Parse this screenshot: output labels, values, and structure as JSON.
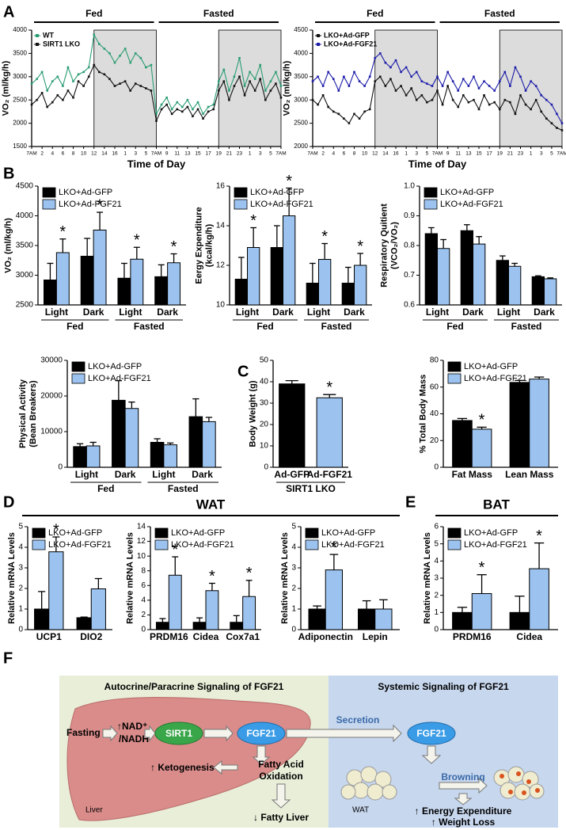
{
  "panel_labels": [
    "A",
    "B",
    "C",
    "D",
    "E",
    "F"
  ],
  "sections": [
    "WAT",
    "BAT"
  ],
  "chart_data": [
    {
      "type": "line",
      "header": [
        "Fed",
        "Fasted"
      ],
      "shaded": [
        [
          12,
          24
        ],
        [
          36,
          48
        ]
      ],
      "ylabel": "VO₂ (ml/kg/h)",
      "xlabel": "Time of Day",
      "xlim": [
        0,
        48
      ],
      "ylim": [
        1500,
        4000
      ],
      "yticks": [
        1500,
        2000,
        2500,
        3000,
        3500,
        4000
      ],
      "xticks": [
        {
          "value": 0,
          "label": "7AM"
        },
        2,
        4,
        6,
        8,
        10,
        12,
        14,
        16,
        {
          "value": 18,
          "label": "1"
        },
        {
          "value": 20,
          "label": "3"
        },
        {
          "value": 22,
          "label": "5"
        },
        {
          "value": 24,
          "label": "7AM"
        },
        {
          "value": 26,
          "label": "9"
        },
        {
          "value": 28,
          "label": "11"
        },
        {
          "value": 30,
          "label": "13"
        },
        {
          "value": 32,
          "label": "15"
        },
        {
          "value": 34,
          "label": "17"
        },
        {
          "value": 36,
          "label": "19"
        },
        {
          "value": 38,
          "label": "21"
        },
        {
          "value": 40,
          "label": "23"
        },
        {
          "value": 42,
          "label": "1"
        },
        {
          "value": 44,
          "label": "3"
        },
        {
          "value": 46,
          "label": "5"
        },
        {
          "value": 48,
          "label": "7AM"
        }
      ],
      "x": [
        0,
        1,
        2,
        3,
        4,
        5,
        6,
        7,
        8,
        9,
        10,
        11,
        12,
        13,
        14,
        15,
        16,
        17,
        18,
        19,
        20,
        21,
        22,
        23,
        24,
        25,
        26,
        27,
        28,
        29,
        30,
        31,
        32,
        33,
        34,
        35,
        36,
        37,
        38,
        39,
        40,
        41,
        42,
        43,
        44,
        45,
        46,
        47,
        48
      ],
      "series": [
        {
          "name": "WT",
          "color": "#2a9d73",
          "values": [
            2850,
            2950,
            3100,
            2700,
            2900,
            3000,
            2800,
            3200,
            2900,
            3050,
            3100,
            3200,
            3900,
            3700,
            3600,
            3500,
            3300,
            3450,
            3600,
            3300,
            3500,
            3400,
            3200,
            3250,
            2200,
            2400,
            2550,
            2300,
            2450,
            2350,
            2500,
            2300,
            2450,
            2200,
            2350,
            2400,
            2900,
            3150,
            2700,
            3000,
            3400,
            2800,
            3100,
            2950,
            3250,
            2700,
            2900,
            3100,
            2800
          ]
        },
        {
          "name": "SIRT1 LKO",
          "color": "#111111",
          "values": [
            2400,
            2500,
            2650,
            2350,
            2450,
            2600,
            2500,
            2700,
            2550,
            2900,
            2800,
            3000,
            3250,
            3100,
            3050,
            2950,
            2800,
            2850,
            2900,
            2700,
            2850,
            2800,
            2750,
            2700,
            2050,
            2300,
            2400,
            2200,
            2300,
            2250,
            2350,
            2150,
            2300,
            2100,
            2250,
            2300,
            2700,
            2900,
            2500,
            2800,
            3000,
            2600,
            2900,
            2700,
            2950,
            2500,
            2700,
            2850,
            2550
          ]
        }
      ]
    },
    {
      "type": "line",
      "header": [
        "Fed",
        "Fasted"
      ],
      "shaded": [
        [
          12,
          24
        ],
        [
          36,
          48
        ]
      ],
      "ylabel": "VO₂ (ml/kg/h)",
      "xlabel": "Time of Day",
      "xlim": [
        0,
        48
      ],
      "ylim": [
        2000,
        4500
      ],
      "yticks": [
        2000,
        2500,
        3000,
        3500,
        4000,
        4500
      ],
      "xticks": [
        {
          "value": 0,
          "label": "7AM"
        },
        2,
        4,
        6,
        8,
        10,
        12,
        14,
        16,
        {
          "value": 18,
          "label": "1"
        },
        {
          "value": 20,
          "label": "3"
        },
        {
          "value": 22,
          "label": "5"
        },
        {
          "value": 24,
          "label": "7AM"
        },
        {
          "value": 26,
          "label": "9"
        },
        {
          "value": 28,
          "label": "11"
        },
        {
          "value": 30,
          "label": "13"
        },
        {
          "value": 32,
          "label": "15"
        },
        {
          "value": 34,
          "label": "17"
        },
        {
          "value": 36,
          "label": "19"
        },
        {
          "value": 38,
          "label": "21"
        },
        {
          "value": 40,
          "label": "23"
        },
        {
          "value": 42,
          "label": "1"
        },
        {
          "value": 44,
          "label": "3"
        },
        {
          "value": 46,
          "label": "5"
        },
        {
          "value": 48,
          "label": "7AM"
        }
      ],
      "x": [
        0,
        1,
        2,
        3,
        4,
        5,
        6,
        7,
        8,
        9,
        10,
        11,
        12,
        13,
        14,
        15,
        16,
        17,
        18,
        19,
        20,
        21,
        22,
        23,
        24,
        25,
        26,
        27,
        28,
        29,
        30,
        31,
        32,
        33,
        34,
        35,
        36,
        37,
        38,
        39,
        40,
        41,
        42,
        43,
        44,
        45,
        46,
        47,
        48
      ],
      "series": [
        {
          "name": "LKO+Ad-GFP",
          "color": "#111111",
          "values": [
            3000,
            2900,
            3100,
            2850,
            2750,
            2700,
            2600,
            2500,
            2700,
            2600,
            2750,
            2800,
            3400,
            3500,
            3300,
            3450,
            3200,
            3300,
            3100,
            3250,
            3000,
            3100,
            2950,
            3000,
            3200,
            2900,
            3300,
            3000,
            2850,
            3100,
            2950,
            3000,
            2800,
            3100,
            2900,
            2950,
            2800,
            3000,
            2950,
            2700,
            3100,
            2900,
            2800,
            3000,
            2750,
            2600,
            2500,
            2400,
            2350
          ]
        },
        {
          "name": "LKO+Ad-FGF21",
          "color": "#1c1caa",
          "values": [
            3400,
            3500,
            3300,
            3600,
            3450,
            3200,
            3500,
            3300,
            3600,
            3400,
            3300,
            3500,
            3900,
            4000,
            3800,
            3700,
            3850,
            3600,
            3700,
            3500,
            3600,
            3400,
            3350,
            3300,
            3500,
            3300,
            3600,
            3400,
            3200,
            3450,
            3300,
            3500,
            3250,
            3400,
            3300,
            3200,
            3400,
            3600,
            3300,
            3700,
            3500,
            3200,
            3400,
            3300,
            3100,
            3000,
            2900,
            2700,
            2500
          ]
        }
      ]
    },
    {
      "type": "bar",
      "ylabel": [
        "VO₂ (ml/kg/h)"
      ],
      "categories": [
        "Light",
        "Dark",
        "Light",
        "Dark"
      ],
      "groups": [
        "Fed",
        "Fasted"
      ],
      "ylim": [
        2500,
        4500
      ],
      "yticks": [
        2500,
        3000,
        3500,
        4000,
        4500
      ],
      "series": [
        {
          "name": "LKO+Ad-GFP",
          "color": "#000000",
          "values": [
            2920,
            3320,
            2950,
            2975
          ],
          "errors": [
            280,
            300,
            250,
            200
          ]
        },
        {
          "name": "LKO+Ad-FGF21",
          "color": "#9cc3f0",
          "values": [
            3380,
            3760,
            3270,
            3210
          ],
          "errors": [
            230,
            300,
            200,
            150
          ],
          "significance": [
            "*",
            "*",
            "*",
            "*"
          ]
        }
      ]
    },
    {
      "type": "bar",
      "ylabel": [
        "Eergy Expenditure",
        "(kcal/kg/h)"
      ],
      "categories": [
        "Light",
        "Dark",
        "Light",
        "Dark"
      ],
      "groups": [
        "Fed",
        "Fasted"
      ],
      "ylim": [
        10,
        16
      ],
      "yticks": [
        10,
        12,
        14,
        16
      ],
      "series": [
        {
          "name": "LKO+Ad-GFP",
          "color": "#000000",
          "values": [
            11.3,
            12.9,
            11.1,
            11.1
          ],
          "errors": [
            1.1,
            1.1,
            1.0,
            0.8
          ]
        },
        {
          "name": "LKO+Ad-FGF21",
          "color": "#9cc3f0",
          "values": [
            12.9,
            14.5,
            12.3,
            12.0
          ],
          "errors": [
            1.0,
            1.4,
            0.8,
            0.6
          ],
          "significance": [
            "*",
            "*",
            "*",
            "*"
          ]
        }
      ]
    },
    {
      "type": "bar",
      "ylabel": [
        "Respiratory Quitient",
        "(VCO₂/VO₂)"
      ],
      "categories": [
        "Light",
        "Dark",
        "Light",
        "Dark"
      ],
      "groups": [
        "Fed",
        "Fasted"
      ],
      "ylim": [
        0.6,
        1.0
      ],
      "yticks": [
        0.6,
        0.7,
        0.8,
        0.9,
        {
          "value": 1.0,
          "label": "1.0"
        }
      ],
      "series": [
        {
          "name": "LKO+Ad-GFP",
          "color": "#000000",
          "values": [
            0.84,
            0.85,
            0.75,
            0.695
          ],
          "errors": [
            0.02,
            0.02,
            0.015,
            0.003
          ]
        },
        {
          "name": "LKO+Ad-FGF21",
          "color": "#9cc3f0",
          "values": [
            0.79,
            0.805,
            0.73,
            0.688
          ],
          "errors": [
            0.03,
            0.025,
            0.01,
            0.003
          ]
        }
      ]
    },
    {
      "type": "bar",
      "ylabel": [
        "Physical Activity",
        "(Bean Breakers)"
      ],
      "categories": [
        "Light",
        "Dark",
        "Light",
        "Dark"
      ],
      "groups": [
        "Fed",
        "Fasted"
      ],
      "ylim": [
        0,
        30000
      ],
      "yticks": [
        0,
        10000,
        20000,
        30000
      ],
      "series": [
        {
          "name": "LKO+Ad-GFP",
          "color": "#000000",
          "values": [
            5800,
            18800,
            7000,
            14200
          ],
          "errors": [
            800,
            5500,
            1000,
            5000
          ]
        },
        {
          "name": "LKO+Ad-FGF21",
          "color": "#9cc3f0",
          "values": [
            6000,
            16500,
            6300,
            12800
          ],
          "errors": [
            1000,
            1800,
            500,
            1200
          ]
        }
      ]
    },
    {
      "type": "bar",
      "ylabel": [
        "Body Weight (g)"
      ],
      "categories": [
        "Ad-GFP",
        "Ad-FGF21"
      ],
      "groups": [
        "SIRT1 LKO"
      ],
      "ylim": [
        0,
        50
      ],
      "yticks": [
        0,
        10,
        20,
        30,
        40,
        50
      ],
      "series": [
        {
          "colors": [
            "#000000",
            "#9cc3f0"
          ],
          "values": [
            39,
            32.5
          ],
          "errors": [
            1.5,
            1.5
          ],
          "significance": [
            null,
            "*"
          ]
        }
      ]
    },
    {
      "type": "bar",
      "ylabel": [
        "% Total Body Mass"
      ],
      "categories": [
        "Fat Mass",
        "Lean Mass"
      ],
      "ylim": [
        0,
        80
      ],
      "yticks": [
        0,
        20,
        40,
        60,
        80
      ],
      "series": [
        {
          "name": "LKO+Ad-GFP",
          "color": "#000000",
          "values": [
            35,
            63.5
          ],
          "errors": [
            1.5,
            1.5
          ]
        },
        {
          "name": "LKO+Ad-FGF21",
          "color": "#9cc3f0",
          "values": [
            28.5,
            66
          ],
          "errors": [
            1.5,
            1.5
          ],
          "significance": [
            "*",
            null
          ]
        }
      ]
    },
    {
      "type": "bar",
      "ylabel": [
        "Relative mRNA Levels"
      ],
      "categories": [
        "UCP1",
        "DIO2"
      ],
      "ylim": [
        0,
        5
      ],
      "yticks": [
        0,
        1,
        2,
        3,
        4,
        5
      ],
      "series": [
        {
          "name": "LKO+Ad-GFP",
          "color": "#000000",
          "values": [
            1.0,
            0.58
          ],
          "errors": [
            0.85,
            0.03
          ]
        },
        {
          "name": "LKO+Ad-FGF21",
          "color": "#9cc3f0",
          "values": [
            3.78,
            1.98
          ],
          "errors": [
            0.72,
            0.5
          ],
          "significance": [
            "*",
            null
          ]
        }
      ]
    },
    {
      "type": "bar",
      "ylabel": [
        "Relative mRNA Levels"
      ],
      "categories": [
        "PRDM16",
        "Cidea",
        "Cox7a1"
      ],
      "ylim": [
        0,
        14
      ],
      "yticks": [
        0,
        2,
        4,
        6,
        8,
        10,
        12,
        14
      ],
      "series": [
        {
          "name": "LKO+Ad-GFP",
          "color": "#000000",
          "values": [
            1.0,
            1.0,
            1.0
          ],
          "errors": [
            0.5,
            0.6,
            0.9
          ]
        },
        {
          "name": "LKO+Ad-FGF21",
          "color": "#9cc3f0",
          "values": [
            7.4,
            5.3,
            4.5
          ],
          "errors": [
            2.5,
            1.0,
            2.2
          ],
          "significance": [
            "*",
            "*",
            "*"
          ]
        }
      ]
    },
    {
      "type": "bar",
      "ylabel": [
        "Relative mRNA Levels"
      ],
      "categories": [
        "Adiponectin",
        "Lepin"
      ],
      "ylim": [
        0,
        5
      ],
      "yticks": [
        0,
        1,
        2,
        3,
        4,
        5
      ],
      "series": [
        {
          "name": "LKO+Ad-GFP",
          "color": "#000000",
          "values": [
            1.0,
            1.0
          ],
          "errors": [
            0.15,
            0.4
          ]
        },
        {
          "name": "LKO+Ad-FGF21",
          "color": "#9cc3f0",
          "values": [
            2.9,
            1.0
          ],
          "errors": [
            0.75,
            0.45
          ],
          "significance": [
            "*",
            null
          ]
        }
      ]
    },
    {
      "type": "bar",
      "ylabel": [
        "Relative mRNA Levels"
      ],
      "categories": [
        "PRDM16",
        "Cidea"
      ],
      "ylim": [
        0,
        6
      ],
      "yticks": [
        0,
        1,
        2,
        3,
        4,
        5,
        6
      ],
      "series": [
        {
          "name": "LKO+Ad-GFP",
          "color": "#000000",
          "values": [
            1.0,
            1.0
          ],
          "errors": [
            0.3,
            0.95
          ]
        },
        {
          "name": "LKO+Ad-FGF21",
          "color": "#9cc3f0",
          "values": [
            2.1,
            3.55
          ],
          "errors": [
            1.1,
            1.5
          ],
          "significance": [
            "*",
            "*"
          ]
        }
      ]
    }
  ],
  "diagram": {
    "left_title": "Autocrine/Paracrine Signaling of FGF21",
    "right_title": "Systemic Signaling of FGF21",
    "fasting": "Fasting",
    "nad": "↑NAD⁺",
    "nadh": "/NADH",
    "sirt1": "SIRT1",
    "fgf21_liver": "FGF21",
    "secretion": "Secretion",
    "fgf21_systemic": "FGF21",
    "ketogenesis": "↑ Ketogenesis",
    "fatty_acid": "Fatty Acid",
    "oxidation": "Oxidation",
    "fatty_liver": "↓ Fatty Liver",
    "liver": "Liver",
    "wat": "WAT",
    "browning": "Browning",
    "energy": "↑ Energy Expenditure",
    "weight": "↑ Weight Loss"
  }
}
